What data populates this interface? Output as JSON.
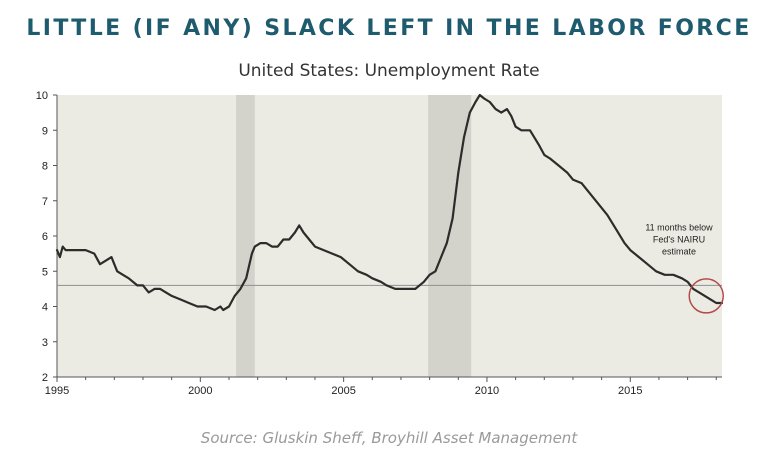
{
  "header": {
    "title": "LITTLE (IF ANY) SLACK LEFT IN THE LABOR FORCE",
    "subtitle": "United States: Unemployment Rate"
  },
  "footer": {
    "source": "Source: Gluskin Sheff, Broyhill Asset Management"
  },
  "chart_data": {
    "type": "line",
    "title": "United States: Unemployment Rate",
    "xlabel": "",
    "ylabel": "",
    "xlim": [
      1995,
      2018.2
    ],
    "ylim": [
      2,
      10
    ],
    "x_ticks": [
      1995,
      2000,
      2005,
      2010,
      2015
    ],
    "y_ticks": [
      2,
      3,
      4,
      5,
      6,
      7,
      8,
      9,
      10
    ],
    "grid": false,
    "series": [
      {
        "x": [
          1995.0,
          1995.1,
          1995.2,
          1995.3,
          1995.5,
          1995.7,
          1996.0,
          1996.3,
          1996.5,
          1996.7,
          1996.9,
          1997.0,
          1997.1,
          1997.3,
          1997.5,
          1997.8,
          1998.0,
          1998.2,
          1998.4,
          1998.6,
          1998.8,
          1999.0,
          1999.3,
          1999.6,
          1999.9,
          2000.2,
          2000.5,
          2000.7,
          2000.8,
          2001.0,
          2001.2,
          2001.4,
          2001.6,
          2001.8,
          2001.9,
          2002.1,
          2002.3,
          2002.5,
          2002.7,
          2002.9,
          2003.1,
          2003.3,
          2003.45,
          2003.6,
          2003.8,
          2004.0,
          2004.3,
          2004.6,
          2004.9,
          2005.2,
          2005.5,
          2005.8,
          2006.0,
          2006.3,
          2006.5,
          2006.8,
          2007.0,
          2007.2,
          2007.5,
          2007.8,
          2008.0,
          2008.2,
          2008.4,
          2008.6,
          2008.8,
          2009.0,
          2009.2,
          2009.4,
          2009.6,
          2009.75,
          2009.9,
          2010.1,
          2010.3,
          2010.5,
          2010.7,
          2010.85,
          2011.0,
          2011.2,
          2011.5,
          2011.8,
          2012.0,
          2012.2,
          2012.5,
          2012.8,
          2013.0,
          2013.3,
          2013.6,
          2013.9,
          2014.2,
          2014.5,
          2014.8,
          2015.0,
          2015.3,
          2015.6,
          2015.9,
          2016.2,
          2016.5,
          2016.8,
          2017.0,
          2017.2,
          2017.4,
          2017.6,
          2017.8,
          2018.0,
          2018.2
        ],
        "values": [
          5.6,
          5.4,
          5.7,
          5.6,
          5.6,
          5.6,
          5.6,
          5.5,
          5.2,
          5.3,
          5.4,
          5.2,
          5.0,
          4.9,
          4.8,
          4.6,
          4.6,
          4.4,
          4.5,
          4.5,
          4.4,
          4.3,
          4.2,
          4.1,
          4.0,
          4.0,
          3.9,
          4.0,
          3.9,
          4.0,
          4.3,
          4.5,
          4.8,
          5.5,
          5.7,
          5.8,
          5.8,
          5.7,
          5.7,
          5.9,
          5.9,
          6.1,
          6.3,
          6.1,
          5.9,
          5.7,
          5.6,
          5.5,
          5.4,
          5.2,
          5.0,
          4.9,
          4.8,
          4.7,
          4.6,
          4.5,
          4.5,
          4.5,
          4.5,
          4.7,
          4.9,
          5.0,
          5.4,
          5.8,
          6.5,
          7.8,
          8.8,
          9.5,
          9.8,
          10.0,
          9.9,
          9.8,
          9.6,
          9.5,
          9.6,
          9.4,
          9.1,
          9.0,
          9.0,
          8.6,
          8.3,
          8.2,
          8.0,
          7.8,
          7.6,
          7.5,
          7.2,
          6.9,
          6.6,
          6.2,
          5.8,
          5.6,
          5.4,
          5.2,
          5.0,
          4.9,
          4.9,
          4.8,
          4.7,
          4.5,
          4.4,
          4.3,
          4.2,
          4.1,
          4.1
        ]
      }
    ],
    "recessions": [
      [
        2001.25,
        2001.9
      ],
      [
        2007.95,
        2009.45
      ]
    ],
    "reference_line": 4.6,
    "annotation": {
      "lines": [
        "11 months below",
        "Fed's NAIRU",
        "estimate"
      ],
      "x": 2016.7,
      "y": 6.15
    },
    "highlight": {
      "x": 2017.65,
      "y": 4.3
    },
    "colors": {
      "plot_background": "#ecebe3",
      "recession_band": "#d3d2cb",
      "line": "#2c2c2a",
      "reference_line": "#8f8f8f",
      "highlight_circle": "#b14a4a"
    }
  }
}
